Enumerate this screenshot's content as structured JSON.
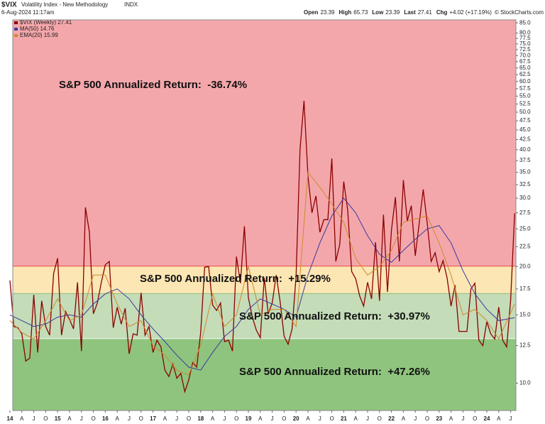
{
  "header": {
    "symbol": "$VIX",
    "title": "Volatility Index - New Methodology",
    "exchange": "INDX",
    "date": "6-Aug-2024 11:17am",
    "stats": [
      {
        "label": "Open",
        "value": "23.39"
      },
      {
        "label": "High",
        "value": "65.73"
      },
      {
        "label": "Low",
        "value": "23.39"
      },
      {
        "label": "Last",
        "value": "27.41"
      },
      {
        "label": "Chg",
        "value": "+4.02 (+17.19%)"
      }
    ],
    "copyright": "© StockCharts.com"
  },
  "chart_data": {
    "type": "line",
    "log_scale": true,
    "xlim": [
      2014.06,
      2024.61
    ],
    "ylim": [
      8.5,
      86.5
    ],
    "xticks": [
      {
        "value": 2014,
        "label": "14"
      },
      {
        "value": 2014.25,
        "label": "A"
      },
      {
        "value": 2014.5,
        "label": "J"
      },
      {
        "value": 2014.75,
        "label": "O"
      },
      {
        "value": 2015,
        "label": "15"
      },
      {
        "value": 2015.25,
        "label": "A"
      },
      {
        "value": 2015.5,
        "label": "J"
      },
      {
        "value": 2015.75,
        "label": "O"
      },
      {
        "value": 2016,
        "label": "16"
      },
      {
        "value": 2016.25,
        "label": "A"
      },
      {
        "value": 2016.5,
        "label": "J"
      },
      {
        "value": 2016.75,
        "label": "O"
      },
      {
        "value": 2017,
        "label": "17"
      },
      {
        "value": 2017.25,
        "label": "A"
      },
      {
        "value": 2017.5,
        "label": "J"
      },
      {
        "value": 2017.75,
        "label": "O"
      },
      {
        "value": 2018,
        "label": "18"
      },
      {
        "value": 2018.25,
        "label": "A"
      },
      {
        "value": 2018.5,
        "label": "J"
      },
      {
        "value": 2018.75,
        "label": "O"
      },
      {
        "value": 2019,
        "label": "19"
      },
      {
        "value": 2019.25,
        "label": "A"
      },
      {
        "value": 2019.5,
        "label": "J"
      },
      {
        "value": 2019.75,
        "label": "O"
      },
      {
        "value": 2020,
        "label": "20"
      },
      {
        "value": 2020.25,
        "label": "A"
      },
      {
        "value": 2020.5,
        "label": "J"
      },
      {
        "value": 2020.75,
        "label": "O"
      },
      {
        "value": 2021,
        "label": "21"
      },
      {
        "value": 2021.25,
        "label": "A"
      },
      {
        "value": 2021.5,
        "label": "J"
      },
      {
        "value": 2021.75,
        "label": "O"
      },
      {
        "value": 2022,
        "label": "22"
      },
      {
        "value": 2022.25,
        "label": "A"
      },
      {
        "value": 2022.5,
        "label": "J"
      },
      {
        "value": 2022.75,
        "label": "O"
      },
      {
        "value": 2023,
        "label": "23"
      },
      {
        "value": 2023.25,
        "label": "A"
      },
      {
        "value": 2023.5,
        "label": "J"
      },
      {
        "value": 2023.75,
        "label": "O"
      },
      {
        "value": 2024,
        "label": "24"
      },
      {
        "value": 2024.25,
        "label": "A"
      },
      {
        "value": 2024.5,
        "label": "J"
      }
    ],
    "yticks": [
      {
        "value": 10,
        "label": "10.0"
      },
      {
        "value": 12.5,
        "label": "12.5"
      },
      {
        "value": 15,
        "label": "15.0"
      },
      {
        "value": 17.5,
        "label": "17.5"
      },
      {
        "value": 20,
        "label": "20.0"
      },
      {
        "value": 22.5,
        "label": "22.5"
      },
      {
        "value": 25,
        "label": "25.0"
      },
      {
        "value": 27.5,
        "label": "27.5"
      },
      {
        "value": 30,
        "label": "30.0"
      },
      {
        "value": 32.5,
        "label": "32.5"
      },
      {
        "value": 35,
        "label": "35.0"
      },
      {
        "value": 37.5,
        "label": "37.5"
      },
      {
        "value": 40,
        "label": "40.0"
      },
      {
        "value": 42.5,
        "label": "42.5"
      },
      {
        "value": 45,
        "label": "45.0"
      },
      {
        "value": 47.5,
        "label": "47.5"
      },
      {
        "value": 50,
        "label": "50.0"
      },
      {
        "value": 52.5,
        "label": "52.5"
      },
      {
        "value": 55,
        "label": "55.0"
      },
      {
        "value": 57.5,
        "label": "57.5"
      },
      {
        "value": 60,
        "label": "60.0"
      },
      {
        "value": 62.5,
        "label": "62.5"
      },
      {
        "value": 65,
        "label": "65.0"
      },
      {
        "value": 67.5,
        "label": "67.5"
      },
      {
        "value": 70,
        "label": "70.0"
      },
      {
        "value": 72.5,
        "label": "72.5"
      },
      {
        "value": 75,
        "label": "75.0"
      },
      {
        "value": 77.5,
        "label": "77.5"
      },
      {
        "value": 80,
        "label": "80.0"
      },
      {
        "value": 85,
        "label": "85.0"
      }
    ],
    "zones": [
      {
        "from": 20,
        "color": "#f4a7ab",
        "border": "#e03030",
        "label": "S&P 500 Annualized Return:  -36.74%"
      },
      {
        "from": 17,
        "to": 20,
        "color": "#fbe6b4",
        "border": "#7fb86a",
        "label": "S&P 500 Annualized Return:  +15.29%"
      },
      {
        "from": 13,
        "to": 17,
        "color": "#c4dcb8",
        "border": "#ffffff",
        "label": "S&P 500 Annualized Return:  +30.97%"
      },
      {
        "to": 13,
        "color": "#8fc47e",
        "border": "#8fc47e",
        "label": "S&P 500 Annualized Return:  +47.26%"
      }
    ],
    "series": [
      {
        "name": "$VIX (Weekly) 27.41",
        "color": "#8b0000",
        "x": [
          2014,
          2014.083,
          2014.167,
          2014.25,
          2014.333,
          2014.417,
          2014.5,
          2014.583,
          2014.667,
          2014.75,
          2014.833,
          2014.917,
          2015,
          2015.083,
          2015.167,
          2015.25,
          2015.333,
          2015.417,
          2015.5,
          2015.583,
          2015.667,
          2015.75,
          2015.833,
          2015.917,
          2016,
          2016.083,
          2016.167,
          2016.25,
          2016.333,
          2016.417,
          2016.5,
          2016.583,
          2016.667,
          2016.75,
          2016.833,
          2016.917,
          2017,
          2017.083,
          2017.167,
          2017.25,
          2017.333,
          2017.417,
          2017.5,
          2017.583,
          2017.667,
          2017.75,
          2017.833,
          2017.917,
          2018,
          2018.083,
          2018.167,
          2018.25,
          2018.333,
          2018.417,
          2018.5,
          2018.583,
          2018.667,
          2018.75,
          2018.833,
          2018.917,
          2019,
          2019.083,
          2019.167,
          2019.25,
          2019.333,
          2019.417,
          2019.5,
          2019.583,
          2019.667,
          2019.75,
          2019.833,
          2019.917,
          2020,
          2020.083,
          2020.167,
          2020.25,
          2020.333,
          2020.417,
          2020.5,
          2020.583,
          2020.667,
          2020.75,
          2020.833,
          2020.917,
          2021,
          2021.083,
          2021.167,
          2021.25,
          2021.333,
          2021.417,
          2021.5,
          2021.583,
          2021.667,
          2021.75,
          2021.833,
          2021.917,
          2022,
          2022.083,
          2022.167,
          2022.25,
          2022.333,
          2022.417,
          2022.5,
          2022.583,
          2022.667,
          2022.75,
          2022.833,
          2022.917,
          2023,
          2023.083,
          2023.167,
          2023.25,
          2023.333,
          2023.417,
          2023.5,
          2023.583,
          2023.667,
          2023.75,
          2023.833,
          2023.917,
          2024,
          2024.083,
          2024.167,
          2024.25,
          2024.333,
          2024.417,
          2024.5,
          2024.583
        ],
        "values": [
          18.4,
          14,
          13.9,
          13.4,
          11.4,
          11.6,
          16.9,
          12,
          16.3,
          14,
          13.3,
          19.2,
          21,
          13.3,
          15.3,
          14.6,
          13.8,
          18.2,
          12.1,
          28.4,
          24.5,
          15.1,
          16.1,
          18.2,
          20.2,
          20.6,
          13.9,
          15.7,
          14.2,
          15.6,
          11.9,
          13.4,
          13.3,
          17.1,
          13.3,
          14,
          12,
          12.9,
          12.4,
          10.8,
          10.4,
          11.2,
          10.3,
          10.6,
          9.5,
          10.2,
          11.3,
          11,
          13.5,
          19.9,
          20,
          15.9,
          15.4,
          16.1,
          12.8,
          12.9,
          12.1,
          21.2,
          18.1,
          25.4,
          16.6,
          14.8,
          13.7,
          13.1,
          18.7,
          15.1,
          16.1,
          19,
          16.2,
          13.2,
          12.6,
          13.8,
          18.8,
          40.1,
          53.5,
          34.2,
          27.5,
          30.4,
          24.5,
          26.4,
          26.4,
          38,
          20.6,
          22.8,
          33.1,
          27.9,
          19.4,
          18.6,
          16.8,
          15.8,
          18.2,
          16.5,
          23.1,
          16.3,
          27.2,
          17.2,
          24.8,
          30.2,
          20.6,
          33.4,
          26.2,
          28.7,
          21.3,
          25.9,
          31.6,
          25.9,
          20.6,
          21.7,
          19.4,
          20.7,
          18.7,
          15.8,
          17.9,
          13.6,
          13.6,
          13.6,
          17.5,
          18.1,
          12.9,
          12.5,
          14.4,
          13.4,
          13,
          15.7,
          12.9,
          12.4,
          16.4,
          27.41
        ]
      },
      {
        "name": "MA(50) 14.76",
        "color": "#3b3b9c",
        "x": [
          2014,
          2014.25,
          2014.5,
          2014.75,
          2015,
          2015.25,
          2015.5,
          2015.75,
          2016,
          2016.25,
          2016.5,
          2016.75,
          2017,
          2017.25,
          2017.5,
          2017.75,
          2018,
          2018.25,
          2018.5,
          2018.75,
          2019,
          2019.25,
          2019.5,
          2019.75,
          2020,
          2020.25,
          2020.5,
          2020.75,
          2021,
          2021.25,
          2021.5,
          2021.75,
          2022,
          2022.25,
          2022.5,
          2022.75,
          2023,
          2023.25,
          2023.5,
          2023.75,
          2024,
          2024.25,
          2024.583
        ],
        "values": [
          15,
          14.5,
          14,
          14.2,
          14.8,
          15,
          14.8,
          16,
          17,
          17.5,
          16.5,
          15,
          13.8,
          12.8,
          11.8,
          11,
          10.8,
          12,
          13.2,
          14,
          15.5,
          16.5,
          16,
          15.5,
          14.8,
          19,
          23,
          27,
          30,
          27.5,
          24,
          21.5,
          20.5,
          22,
          23.5,
          25,
          25.5,
          23,
          19.5,
          17,
          15.5,
          14.5,
          14.76
        ]
      },
      {
        "name": "EMA(20) 15.99",
        "color": "#d08a2a",
        "x": [
          2014,
          2014.25,
          2014.5,
          2014.75,
          2015,
          2015.25,
          2015.5,
          2015.75,
          2016,
          2016.25,
          2016.5,
          2016.75,
          2017,
          2017.25,
          2017.5,
          2017.75,
          2018,
          2018.25,
          2018.5,
          2018.75,
          2019,
          2019.25,
          2019.5,
          2019.75,
          2020,
          2020.25,
          2020.5,
          2020.75,
          2021,
          2021.25,
          2021.5,
          2021.75,
          2022,
          2022.25,
          2022.5,
          2022.75,
          2023,
          2023.25,
          2023.5,
          2023.75,
          2024,
          2024.25,
          2024.583
        ],
        "values": [
          14.5,
          13.5,
          13,
          14.5,
          16.5,
          14.5,
          15,
          19,
          19,
          16,
          14,
          14.5,
          12.5,
          11.8,
          10.8,
          10.5,
          12.5,
          17,
          14,
          15,
          20,
          15,
          15.5,
          15.5,
          14,
          35,
          32,
          29,
          26,
          21,
          19,
          20,
          22,
          26,
          26.5,
          27,
          23,
          19,
          15,
          15.5,
          14.5,
          13,
          15.99
        ]
      }
    ]
  }
}
